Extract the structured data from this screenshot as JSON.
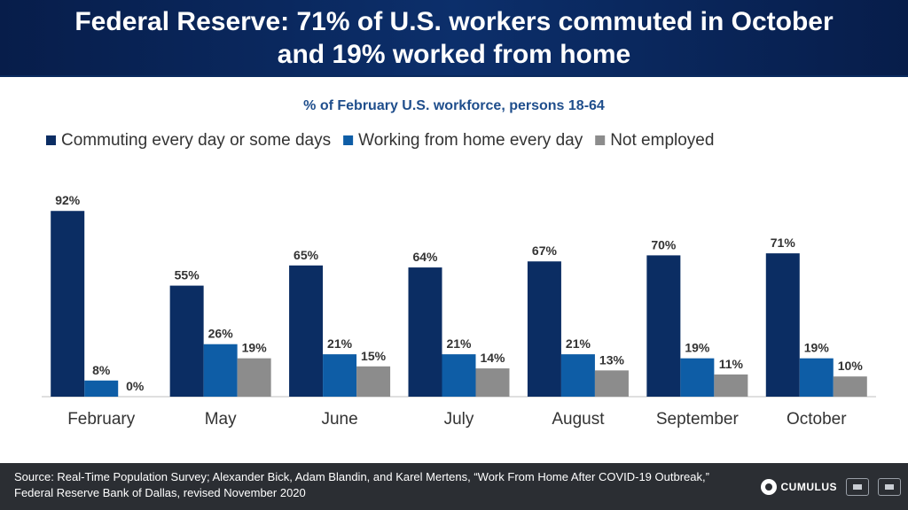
{
  "header": {
    "title": "Federal Reserve: 71% of U.S. workers commuted in October and 19% worked from home"
  },
  "chart_data": {
    "type": "bar",
    "subtitle": "% of February U.S. workforce, persons 18-64",
    "categories": [
      "February",
      "May",
      "June",
      "July",
      "August",
      "September",
      "October"
    ],
    "series": [
      {
        "name": "Commuting every day or some days",
        "color": "#0b2d63",
        "values": [
          92,
          55,
          65,
          64,
          67,
          70,
          71
        ]
      },
      {
        "name": "Working from home every day",
        "color": "#0e5da6",
        "values": [
          8,
          26,
          21,
          21,
          21,
          19,
          19
        ]
      },
      {
        "name": "Not employed",
        "color": "#8c8c8c",
        "values": [
          0,
          19,
          15,
          14,
          13,
          11,
          10
        ]
      }
    ],
    "value_suffix": "%",
    "ylim": [
      0,
      100
    ],
    "legend_position": "top",
    "grid": false
  },
  "footer": {
    "source": "Source: Real-Time Population Survey; Alexander Bick, Adam Blandin, and Karel Mertens, “Work From Home After COVID-19 Outbreak,” Federal Reserve Bank of Dallas, revised November 2020",
    "logo_text": "CUMULUS"
  }
}
